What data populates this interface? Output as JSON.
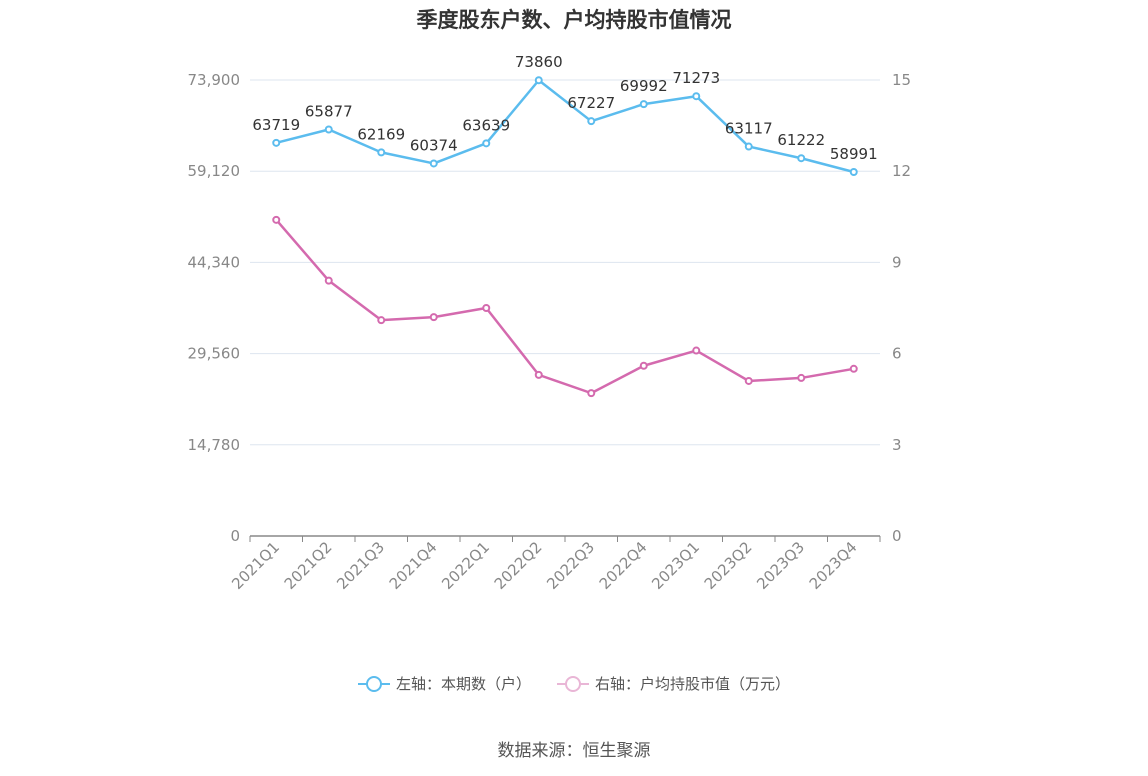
{
  "title": "季度股东户数、户均持股市值情况",
  "source": "数据来源：恒生聚源",
  "colors": {
    "left_series": "#5bbcee",
    "right_series": "#d46aae",
    "axis_text": "#888888",
    "grid": "#dde5ef"
  },
  "chart_data": {
    "type": "line",
    "categories": [
      "2021Q1",
      "2021Q2",
      "2021Q3",
      "2021Q4",
      "2022Q1",
      "2022Q2",
      "2022Q3",
      "2022Q4",
      "2023Q1",
      "2023Q2",
      "2023Q3",
      "2023Q4"
    ],
    "y_left": {
      "ticks": [
        "0",
        "14,780",
        "29,560",
        "44,340",
        "59,120",
        "73,900"
      ],
      "range": [
        0,
        73900
      ]
    },
    "y_right": {
      "ticks": [
        "0",
        "3",
        "6",
        "9",
        "12",
        "15"
      ],
      "range": [
        0,
        15
      ]
    },
    "grid": true,
    "legend_position": "bottom",
    "series": [
      {
        "name": "左轴：本期数（户）",
        "axis": "left",
        "values": [
          63719,
          65877,
          62169,
          60374,
          63639,
          73860,
          67227,
          69992,
          71273,
          63117,
          61222,
          58991
        ],
        "labels": [
          "63719",
          "65877",
          "62169",
          "60374",
          "63639",
          "73860",
          "67227",
          "69992",
          "71273",
          "63117",
          "61222",
          "58991"
        ]
      },
      {
        "name": "右轴：户均持股市值（万元）",
        "axis": "right",
        "values": [
          10.4,
          8.4,
          7.1,
          7.2,
          7.5,
          5.3,
          4.7,
          5.6,
          6.1,
          5.1,
          5.2,
          5.5
        ]
      }
    ]
  }
}
